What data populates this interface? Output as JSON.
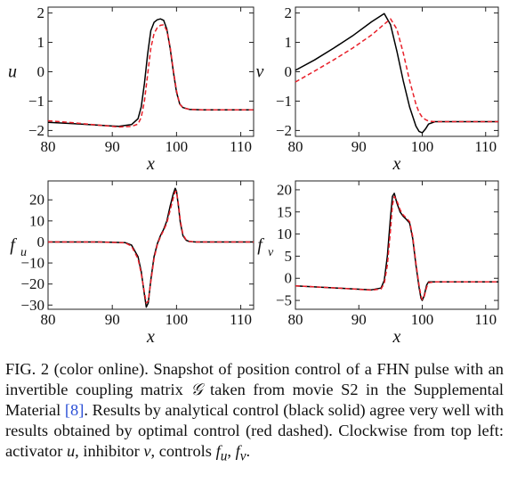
{
  "chart_data": [
    {
      "type": "line",
      "ylabel": "u",
      "xlabel": "x",
      "xlim": [
        80,
        112
      ],
      "ylim": [
        -2.2,
        2.2
      ],
      "xticks": [
        80,
        90,
        100,
        110
      ],
      "yticks": [
        -2,
        -1,
        0,
        1,
        2
      ],
      "series": [
        {
          "color": "#000000",
          "style": "solid",
          "x": [
            80,
            84,
            88,
            91,
            93,
            94,
            94.5,
            95,
            95.5,
            96,
            96.5,
            97,
            97.5,
            98,
            98.5,
            99,
            99.5,
            100,
            100.5,
            101,
            102,
            104,
            108,
            112
          ],
          "y": [
            -1.72,
            -1.77,
            -1.82,
            -1.86,
            -1.8,
            -1.6,
            -1.2,
            -0.4,
            0.6,
            1.4,
            1.68,
            1.77,
            1.8,
            1.75,
            1.45,
            0.8,
            0.0,
            -0.7,
            -1.1,
            -1.22,
            -1.28,
            -1.3,
            -1.3,
            -1.3
          ]
        },
        {
          "color": "#e8202a",
          "style": "dashed",
          "x": [
            80,
            84,
            88,
            91,
            93,
            94,
            94.5,
            95,
            95.5,
            96,
            96.5,
            97,
            97.5,
            98,
            98.5,
            99,
            99.5,
            100,
            100.5,
            101,
            102,
            104,
            108,
            112
          ],
          "y": [
            -1.67,
            -1.74,
            -1.82,
            -1.88,
            -1.86,
            -1.78,
            -1.55,
            -1.0,
            -0.1,
            0.8,
            1.3,
            1.5,
            1.58,
            1.6,
            1.4,
            0.85,
            0.05,
            -0.65,
            -1.1,
            -1.23,
            -1.28,
            -1.3,
            -1.3,
            -1.3
          ]
        }
      ]
    },
    {
      "type": "line",
      "ylabel": "v",
      "xlabel": "x",
      "xlim": [
        80,
        112
      ],
      "ylim": [
        -2.2,
        2.2
      ],
      "xticks": [
        80,
        90,
        100,
        110
      ],
      "yticks": [
        -2,
        -1,
        0,
        1,
        2
      ],
      "series": [
        {
          "color": "#000000",
          "style": "solid",
          "x": [
            80,
            83,
            86,
            89,
            92,
            94,
            95,
            96,
            97,
            98,
            99,
            99.5,
            100,
            100.5,
            101,
            102,
            103,
            105,
            108,
            112
          ],
          "y": [
            0.05,
            0.4,
            0.8,
            1.22,
            1.7,
            1.98,
            1.6,
            0.7,
            -0.3,
            -1.2,
            -1.85,
            -2.03,
            -2.08,
            -1.95,
            -1.78,
            -1.7,
            -1.7,
            -1.7,
            -1.7,
            -1.7
          ]
        },
        {
          "color": "#e8202a",
          "style": "dashed",
          "x": [
            80,
            83,
            86,
            89,
            92,
            94,
            95,
            96,
            97,
            98,
            99,
            99.5,
            100,
            100.5,
            101,
            102,
            103,
            105,
            108,
            112
          ],
          "y": [
            -0.35,
            0.02,
            0.4,
            0.8,
            1.25,
            1.62,
            1.8,
            1.45,
            0.65,
            -0.3,
            -1.1,
            -1.38,
            -1.55,
            -1.63,
            -1.68,
            -1.7,
            -1.7,
            -1.7,
            -1.7,
            -1.7
          ]
        }
      ]
    },
    {
      "type": "line",
      "ylabel": "f",
      "ylabel_sub": "u",
      "xlabel": "x",
      "xlim": [
        80,
        112
      ],
      "ylim": [
        -32,
        29
      ],
      "xticks": [
        80,
        90,
        100,
        110
      ],
      "yticks": [
        -30,
        -20,
        -10,
        0,
        10,
        20
      ],
      "series": [
        {
          "color": "#000000",
          "style": "solid",
          "x": [
            80,
            88,
            92,
            93,
            94,
            94.5,
            95,
            95.3,
            95.6,
            96,
            96.5,
            97,
            97.5,
            98,
            98.5,
            99,
            99.5,
            99.8,
            100,
            100.3,
            100.6,
            101,
            101.5,
            102,
            103,
            106,
            112
          ],
          "y": [
            0,
            0,
            -0.3,
            -1.5,
            -7,
            -14,
            -25,
            -31,
            -29,
            -18,
            -7,
            -1,
            3,
            6,
            10,
            17,
            23,
            25.5,
            24,
            17,
            9,
            3,
            0.8,
            0.2,
            0,
            0,
            0
          ]
        },
        {
          "color": "#e8202a",
          "style": "dashed",
          "x": [
            80,
            88,
            92,
            93,
            94,
            94.5,
            95,
            95.3,
            95.6,
            96,
            96.5,
            97,
            97.5,
            98,
            98.5,
            99,
            99.5,
            99.8,
            100,
            100.3,
            100.6,
            101,
            101.5,
            102,
            103,
            106,
            112
          ],
          "y": [
            0,
            0,
            -0.4,
            -2,
            -8,
            -15,
            -24,
            -29,
            -28,
            -19,
            -8,
            -1.5,
            2.5,
            5.5,
            9,
            15,
            21,
            24,
            24,
            18,
            10,
            3.5,
            1,
            0.3,
            0,
            0,
            0
          ]
        }
      ]
    },
    {
      "type": "line",
      "ylabel": "f",
      "ylabel_sub": "v",
      "xlabel": "x",
      "xlim": [
        80,
        112
      ],
      "ylim": [
        -7,
        22
      ],
      "xticks": [
        80,
        90,
        100,
        110
      ],
      "yticks": [
        -5,
        0,
        5,
        10,
        15,
        20
      ],
      "series": [
        {
          "color": "#000000",
          "style": "solid",
          "x": [
            80,
            84,
            88,
            92,
            93.5,
            94,
            94.5,
            95,
            95.3,
            95.6,
            96,
            96.5,
            97,
            97.5,
            98,
            98.5,
            99,
            99.5,
            99.8,
            100,
            100.3,
            100.7,
            101,
            102,
            104,
            108,
            112
          ],
          "y": [
            -1.7,
            -2.0,
            -2.3,
            -2.6,
            -2.2,
            -0.5,
            5,
            14,
            18.5,
            19.2,
            17,
            15,
            14,
            13.3,
            12.5,
            9,
            3,
            -2,
            -4.5,
            -5,
            -4,
            -1.5,
            -0.8,
            -0.8,
            -0.8,
            -0.8,
            -0.8
          ]
        },
        {
          "color": "#e8202a",
          "style": "dashed",
          "x": [
            80,
            84,
            88,
            92,
            93.5,
            94,
            94.5,
            95,
            95.3,
            95.6,
            96,
            96.5,
            97,
            97.5,
            98,
            98.5,
            99,
            99.5,
            99.8,
            100,
            100.3,
            100.7,
            101,
            102,
            104,
            108,
            112
          ],
          "y": [
            -1.7,
            -2.0,
            -2.3,
            -2.7,
            -2.4,
            -1.2,
            3,
            11,
            16.5,
            18.5,
            17.5,
            15.5,
            14.3,
            13.6,
            12.8,
            9.5,
            3.5,
            -1.5,
            -4,
            -4.8,
            -4.2,
            -2,
            -1,
            -0.8,
            -0.8,
            -0.8,
            -0.8
          ]
        }
      ]
    }
  ],
  "caption": {
    "lead": "FIG. 2 (color online).",
    "body_1": "Snapshot of position control of a FHN pulse with an invertible coupling matrix",
    "matrix_symbol": "𝒢",
    "body_2": "taken from movie S2 in the Supplemental Material",
    "citation": "[8]",
    "body_3": ". Results by analytical control (black solid) agree very well with results obtained by optimal control (red dashed). Clockwise from top left: activator",
    "sym_u": "u",
    "comma_1": ",",
    "body_4": "inhibitor",
    "sym_v": "v",
    "body_5": ", controls",
    "sym_fu_base": "f",
    "sym_fu_sub": "u",
    "comma_2": ",",
    "sym_fv_base": "f",
    "sym_fv_sub": "v",
    "end": "."
  }
}
